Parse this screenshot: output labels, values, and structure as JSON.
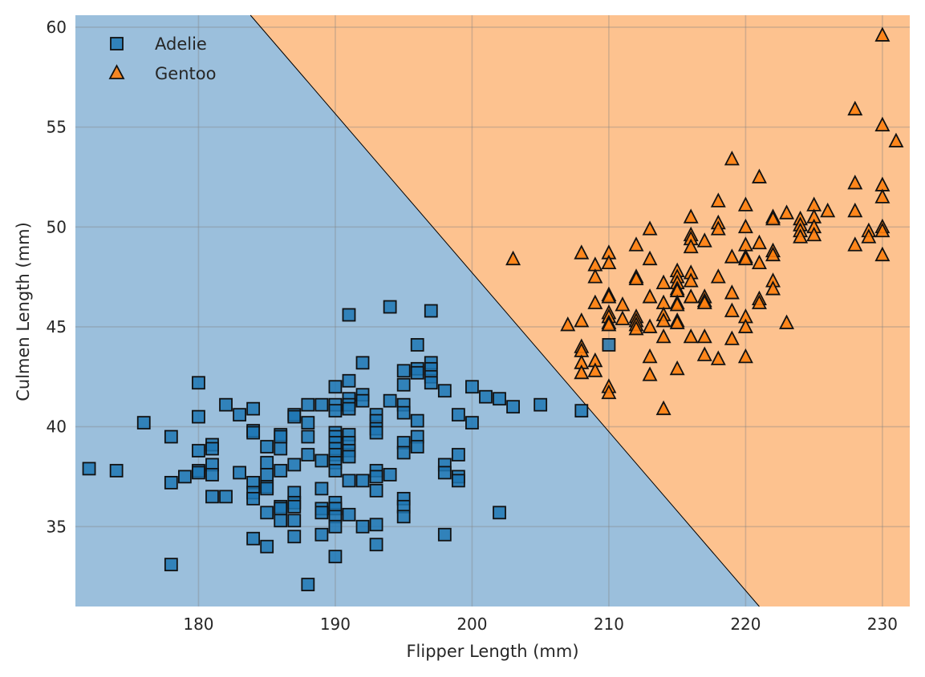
{
  "chart_data": {
    "type": "scatter",
    "title": "",
    "xlabel": "Flipper Length (mm)",
    "ylabel": "Culmen Length (mm)",
    "xlim": [
      171,
      232
    ],
    "ylim": [
      31,
      60.6
    ],
    "xticks": [
      180,
      190,
      200,
      210,
      220,
      230
    ],
    "yticks": [
      35,
      40,
      45,
      50,
      55,
      60
    ],
    "grid": true,
    "legend_position": "upper-left",
    "decision_boundary": {
      "points": [
        [
          183.8,
          60.6
        ],
        [
          221.0,
          31.0
        ]
      ],
      "regions": [
        {
          "series": "Adelie",
          "side": "left",
          "color": "#9bbfdc"
        },
        {
          "series": "Gentoo",
          "side": "right",
          "color": "#fdc28f"
        }
      ]
    },
    "series": [
      {
        "name": "Adelie",
        "marker": "square",
        "color": "#1f77b4",
        "points": [
          [
            172,
            37.9
          ],
          [
            174,
            37.8
          ],
          [
            176,
            40.2
          ],
          [
            178,
            39.5
          ],
          [
            178,
            37.2
          ],
          [
            178,
            33.1
          ],
          [
            179,
            37.5
          ],
          [
            180,
            42.2
          ],
          [
            180,
            40.5
          ],
          [
            180,
            38.8
          ],
          [
            180,
            37.8
          ],
          [
            180,
            37.7
          ],
          [
            181,
            39.1
          ],
          [
            181,
            38.9
          ],
          [
            181,
            38.1
          ],
          [
            181,
            37.6
          ],
          [
            181,
            36.5
          ],
          [
            182,
            41.1
          ],
          [
            182,
            36.5
          ],
          [
            183,
            40.6
          ],
          [
            183,
            37.7
          ],
          [
            184,
            40.9
          ],
          [
            184,
            39.8
          ],
          [
            184,
            39.7
          ],
          [
            184,
            37.2
          ],
          [
            184,
            36.7
          ],
          [
            184,
            36.4
          ],
          [
            184,
            34.4
          ],
          [
            185,
            39.0
          ],
          [
            185,
            38.2
          ],
          [
            185,
            37.6
          ],
          [
            185,
            37.0
          ],
          [
            185,
            36.9
          ],
          [
            185,
            35.7
          ],
          [
            185,
            34.0
          ],
          [
            186,
            39.6
          ],
          [
            186,
            39.5
          ],
          [
            186,
            38.9
          ],
          [
            186,
            37.8
          ],
          [
            186,
            36.0
          ],
          [
            186,
            35.9
          ],
          [
            186,
            35.3
          ],
          [
            187,
            40.6
          ],
          [
            187,
            40.5
          ],
          [
            187,
            38.1
          ],
          [
            187,
            36.7
          ],
          [
            187,
            36.2
          ],
          [
            187,
            36.0
          ],
          [
            187,
            35.3
          ],
          [
            187,
            34.5
          ],
          [
            188,
            41.1
          ],
          [
            188,
            40.2
          ],
          [
            188,
            39.5
          ],
          [
            188,
            38.6
          ],
          [
            188,
            32.1
          ],
          [
            189,
            41.1
          ],
          [
            189,
            38.3
          ],
          [
            189,
            36.9
          ],
          [
            189,
            35.9
          ],
          [
            189,
            35.7
          ],
          [
            189,
            34.6
          ],
          [
            190,
            42.0
          ],
          [
            190,
            41.1
          ],
          [
            190,
            40.8
          ],
          [
            190,
            39.7
          ],
          [
            190,
            39.5
          ],
          [
            190,
            39.2
          ],
          [
            190,
            38.9
          ],
          [
            190,
            38.6
          ],
          [
            190,
            38.2
          ],
          [
            190,
            37.8
          ],
          [
            190,
            36.2
          ],
          [
            190,
            35.9
          ],
          [
            190,
            35.5
          ],
          [
            190,
            35.0
          ],
          [
            190,
            33.5
          ],
          [
            191,
            45.6
          ],
          [
            191,
            42.3
          ],
          [
            191,
            41.4
          ],
          [
            191,
            41.1
          ],
          [
            191,
            40.9
          ],
          [
            191,
            39.6
          ],
          [
            191,
            39.2
          ],
          [
            191,
            38.8
          ],
          [
            191,
            38.5
          ],
          [
            191,
            37.3
          ],
          [
            191,
            35.6
          ],
          [
            192,
            43.2
          ],
          [
            192,
            41.6
          ],
          [
            192,
            41.3
          ],
          [
            192,
            37.3
          ],
          [
            192,
            35.0
          ],
          [
            193,
            40.6
          ],
          [
            193,
            40.3
          ],
          [
            193,
            39.9
          ],
          [
            193,
            39.7
          ],
          [
            193,
            37.8
          ],
          [
            193,
            37.5
          ],
          [
            193,
            36.8
          ],
          [
            193,
            35.1
          ],
          [
            193,
            34.1
          ],
          [
            194,
            46.0
          ],
          [
            194,
            41.3
          ],
          [
            194,
            37.6
          ],
          [
            195,
            42.8
          ],
          [
            195,
            42.1
          ],
          [
            195,
            41.1
          ],
          [
            195,
            40.7
          ],
          [
            195,
            39.2
          ],
          [
            195,
            38.7
          ],
          [
            195,
            36.4
          ],
          [
            195,
            36.0
          ],
          [
            195,
            35.5
          ],
          [
            196,
            44.1
          ],
          [
            196,
            42.9
          ],
          [
            196,
            42.7
          ],
          [
            196,
            40.3
          ],
          [
            196,
            39.5
          ],
          [
            196,
            39.0
          ],
          [
            197,
            45.8
          ],
          [
            197,
            43.2
          ],
          [
            197,
            42.9
          ],
          [
            197,
            42.5
          ],
          [
            197,
            42.2
          ],
          [
            198,
            41.8
          ],
          [
            198,
            38.1
          ],
          [
            198,
            37.7
          ],
          [
            198,
            34.6
          ],
          [
            199,
            40.6
          ],
          [
            199,
            38.6
          ],
          [
            199,
            37.5
          ],
          [
            199,
            37.3
          ],
          [
            200,
            42.0
          ],
          [
            200,
            40.2
          ],
          [
            201,
            41.5
          ],
          [
            202,
            41.4
          ],
          [
            202,
            35.7
          ],
          [
            203,
            41.0
          ],
          [
            205,
            41.1
          ],
          [
            208,
            40.8
          ],
          [
            210,
            44.1
          ]
        ]
      },
      {
        "name": "Gentoo",
        "marker": "triangle",
        "color": "#ff7f0e",
        "points": [
          [
            203,
            48.4
          ],
          [
            207,
            45.1
          ],
          [
            208,
            48.7
          ],
          [
            208,
            45.3
          ],
          [
            208,
            44.0
          ],
          [
            208,
            43.8
          ],
          [
            208,
            43.2
          ],
          [
            208,
            42.7
          ],
          [
            209,
            48.1
          ],
          [
            209,
            47.5
          ],
          [
            209,
            46.2
          ],
          [
            209,
            43.3
          ],
          [
            209,
            42.8
          ],
          [
            210,
            48.7
          ],
          [
            210,
            48.2
          ],
          [
            210,
            46.6
          ],
          [
            210,
            46.5
          ],
          [
            210,
            45.7
          ],
          [
            210,
            45.5
          ],
          [
            210,
            45.2
          ],
          [
            210,
            45.1
          ],
          [
            210,
            42.0
          ],
          [
            210,
            41.7
          ],
          [
            211,
            46.1
          ],
          [
            211,
            45.4
          ],
          [
            212,
            49.1
          ],
          [
            212,
            47.5
          ],
          [
            212,
            47.4
          ],
          [
            212,
            45.5
          ],
          [
            212,
            45.3
          ],
          [
            212,
            45.1
          ],
          [
            212,
            44.9
          ],
          [
            213,
            49.9
          ],
          [
            213,
            48.4
          ],
          [
            213,
            46.5
          ],
          [
            213,
            45.0
          ],
          [
            213,
            43.5
          ],
          [
            213,
            42.6
          ],
          [
            214,
            47.2
          ],
          [
            214,
            46.2
          ],
          [
            214,
            45.6
          ],
          [
            214,
            45.3
          ],
          [
            214,
            44.5
          ],
          [
            214,
            40.9
          ],
          [
            215,
            47.8
          ],
          [
            215,
            47.5
          ],
          [
            215,
            47.2
          ],
          [
            215,
            46.9
          ],
          [
            215,
            46.8
          ],
          [
            215,
            46.2
          ],
          [
            215,
            46.1
          ],
          [
            215,
            45.3
          ],
          [
            215,
            45.2
          ],
          [
            215,
            42.9
          ],
          [
            216,
            50.5
          ],
          [
            216,
            49.6
          ],
          [
            216,
            49.4
          ],
          [
            216,
            49.0
          ],
          [
            216,
            47.7
          ],
          [
            216,
            47.3
          ],
          [
            216,
            46.5
          ],
          [
            216,
            44.5
          ],
          [
            217,
            49.3
          ],
          [
            217,
            46.5
          ],
          [
            217,
            46.3
          ],
          [
            217,
            46.2
          ],
          [
            217,
            44.5
          ],
          [
            217,
            43.6
          ],
          [
            218,
            51.3
          ],
          [
            218,
            50.2
          ],
          [
            218,
            49.9
          ],
          [
            218,
            47.5
          ],
          [
            218,
            43.4
          ],
          [
            219,
            53.4
          ],
          [
            219,
            48.5
          ],
          [
            219,
            46.7
          ],
          [
            219,
            45.8
          ],
          [
            219,
            44.4
          ],
          [
            220,
            51.1
          ],
          [
            220,
            50.0
          ],
          [
            220,
            49.1
          ],
          [
            220,
            48.5
          ],
          [
            220,
            48.4
          ],
          [
            220,
            45.5
          ],
          [
            220,
            45.0
          ],
          [
            220,
            43.5
          ],
          [
            221,
            52.5
          ],
          [
            221,
            49.2
          ],
          [
            221,
            48.2
          ],
          [
            221,
            46.4
          ],
          [
            221,
            46.2
          ],
          [
            222,
            50.5
          ],
          [
            222,
            50.4
          ],
          [
            222,
            48.8
          ],
          [
            222,
            48.6
          ],
          [
            222,
            47.3
          ],
          [
            222,
            46.9
          ],
          [
            223,
            50.7
          ],
          [
            223,
            45.2
          ],
          [
            224,
            50.4
          ],
          [
            224,
            50.1
          ],
          [
            224,
            49.8
          ],
          [
            224,
            49.5
          ],
          [
            225,
            51.1
          ],
          [
            225,
            50.5
          ],
          [
            225,
            50.0
          ],
          [
            225,
            49.6
          ],
          [
            226,
            50.8
          ],
          [
            228,
            55.9
          ],
          [
            228,
            52.2
          ],
          [
            228,
            50.8
          ],
          [
            228,
            49.1
          ],
          [
            229,
            49.8
          ],
          [
            229,
            49.5
          ],
          [
            230,
            59.6
          ],
          [
            230,
            55.1
          ],
          [
            230,
            52.1
          ],
          [
            230,
            51.5
          ],
          [
            230,
            50.0
          ],
          [
            230,
            49.8
          ],
          [
            230,
            48.6
          ],
          [
            231,
            54.3
          ]
        ]
      }
    ]
  }
}
